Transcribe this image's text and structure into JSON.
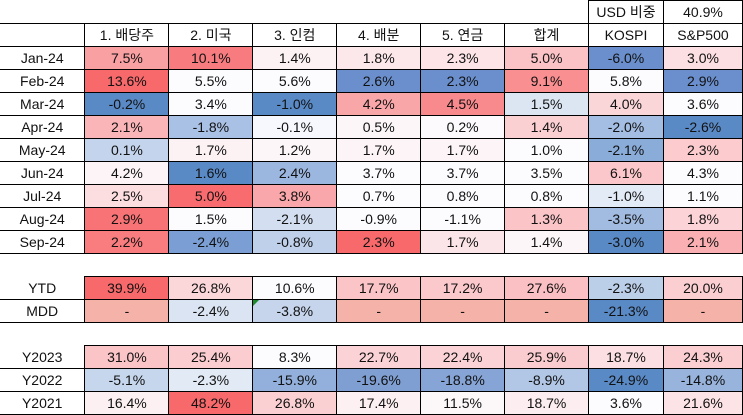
{
  "usd_ratio": {
    "label": "USD 비중",
    "value": "40.9%"
  },
  "headers": [
    "1. 배당주",
    "2. 미국",
    "3. 인컴",
    "4. 배분",
    "5. 연금",
    "합계",
    "KOSPI",
    "S&P500"
  ],
  "monthly": [
    {
      "label": "Jan-24",
      "values": [
        "7.5%",
        "10.1%",
        "1.4%",
        "1.8%",
        "2.3%",
        "5.0%",
        "-6.0%",
        "3.0%"
      ],
      "colors": [
        "#f8a0a2",
        "#f87c7f",
        "#fcf2f4",
        "#fce7ea",
        "#fce4e7",
        "#fbc3c6",
        "#6a8fcc",
        "#fcdfe2"
      ]
    },
    {
      "label": "Feb-24",
      "values": [
        "13.6%",
        "5.5%",
        "5.6%",
        "2.6%",
        "2.3%",
        "9.1%",
        "5.8%",
        "2.9%"
      ],
      "colors": [
        "#f8696b",
        "#fcfcff",
        "#fcfcff",
        "#6b8fcd",
        "#6b8fcd",
        "#f98f91",
        "#fcfcff",
        "#6b8fcd"
      ]
    },
    {
      "label": "Mar-24",
      "values": [
        "-0.2%",
        "3.4%",
        "-1.0%",
        "4.2%",
        "4.5%",
        "1.5%",
        "4.0%",
        "3.6%"
      ],
      "colors": [
        "#5a8ac6",
        "#fcfcff",
        "#5a8ac6",
        "#f9a6a9",
        "#f8898c",
        "#dce6f3",
        "#fbd6d9",
        "#fcfcff"
      ]
    },
    {
      "label": "Apr-24",
      "values": [
        "2.1%",
        "-1.8%",
        "-0.1%",
        "0.5%",
        "0.2%",
        "1.4%",
        "-2.0%",
        "-2.6%"
      ],
      "colors": [
        "#fab5b8",
        "#a9c1e4",
        "#f6f8fd",
        "#fcf6f8",
        "#fcfafc",
        "#fbd0d3",
        "#a4bde2",
        "#5a8ac6"
      ]
    },
    {
      "label": "May-24",
      "values": [
        "0.1%",
        "1.7%",
        "1.2%",
        "1.7%",
        "1.7%",
        "1.0%",
        "-2.1%",
        "2.3%"
      ],
      "colors": [
        "#c3d4ec",
        "#fcf2f4",
        "#fcf6f8",
        "#fcf4f6",
        "#fcf4f6",
        "#fcfcff",
        "#8aacd9",
        "#fbcbce"
      ]
    },
    {
      "label": "Jun-24",
      "values": [
        "4.2%",
        "1.6%",
        "2.4%",
        "3.7%",
        "3.7%",
        "3.5%",
        "6.1%",
        "4.3%"
      ],
      "colors": [
        "#fcf4f6",
        "#5a8ac6",
        "#9cb7df",
        "#fcfcff",
        "#fcfcff",
        "#fcfcff",
        "#fbc7ca",
        "#fcfcff"
      ]
    },
    {
      "label": "Jul-24",
      "values": [
        "2.5%",
        "5.0%",
        "3.8%",
        "0.7%",
        "0.8%",
        "0.8%",
        "-1.0%",
        "1.1%"
      ],
      "colors": [
        "#fcdde0",
        "#f86c6f",
        "#f9a7aa",
        "#fcfcff",
        "#fcfcff",
        "#fcfcff",
        "#e3ebf6",
        "#fcfcff"
      ]
    },
    {
      "label": "Aug-24",
      "values": [
        "2.9%",
        "1.5%",
        "-2.1%",
        "-0.9%",
        "-1.1%",
        "1.3%",
        "-3.5%",
        "1.8%"
      ],
      "colors": [
        "#f87375",
        "#fcfcff",
        "#d3dff0",
        "#fcfcff",
        "#fcfcff",
        "#fbc5c8",
        "#a2bbe1",
        "#fcd3d6"
      ]
    },
    {
      "label": "Sep-24",
      "values": [
        "2.2%",
        "-2.4%",
        "-0.8%",
        "2.3%",
        "1.7%",
        "1.4%",
        "-3.0%",
        "2.1%"
      ],
      "colors": [
        "#f97c7e",
        "#7b9fd4",
        "#bfd0ea",
        "#f8696b",
        "#fce5e8",
        "#fcf6f8",
        "#5a8ac6",
        "#fab0b3"
      ]
    }
  ],
  "summary": [
    {
      "label": "YTD",
      "values": [
        "39.9%",
        "26.8%",
        "10.6%",
        "17.7%",
        "17.2%",
        "27.6%",
        "-2.3%",
        "20.0%"
      ],
      "colors": [
        "#f8696b",
        "#fcd7da",
        "#fcfcff",
        "#fbc5c8",
        "#fbc8cb",
        "#fbc0c3",
        "#bccfe9",
        "#fbcfd2"
      ]
    },
    {
      "label": "MDD",
      "values": [
        "-",
        "-2.4%",
        "-3.8%",
        "-",
        "-",
        "-",
        "-21.3%",
        "-"
      ],
      "colors": [
        "#f4b2a8",
        "#dbe4f2",
        "#c6d5ec",
        "#f4b2a8",
        "#f4b2a8",
        "#f4b2a8",
        "#5a8ac6",
        "#f4b2a8"
      ]
    }
  ],
  "yearly": [
    {
      "label": "Y2023",
      "values": [
        "31.0%",
        "25.4%",
        "8.3%",
        "22.7%",
        "22.4%",
        "25.9%",
        "18.7%",
        "24.3%"
      ],
      "colors": [
        "#fbc4c7",
        "#fbcdd0",
        "#fcfcff",
        "#fbd2d5",
        "#fbd3d6",
        "#fbcccf",
        "#fbdfe2",
        "#fbcfd2"
      ]
    },
    {
      "label": "Y2022",
      "values": [
        "-5.1%",
        "-2.3%",
        "-15.9%",
        "-19.6%",
        "-18.8%",
        "-8.9%",
        "-24.9%",
        "-14.8%"
      ],
      "colors": [
        "#c6d6ec",
        "#e2eaf6",
        "#92b0db",
        "#7f9fd3",
        "#86a4d5",
        "#b2c7e6",
        "#5a8ac6",
        "#98b4dd"
      ]
    },
    {
      "label": "Y2021",
      "values": [
        "16.4%",
        "48.2%",
        "26.8%",
        "17.4%",
        "11.5%",
        "18.7%",
        "3.6%",
        "21.6%"
      ],
      "colors": [
        "#fcf0f2",
        "#f8696b",
        "#fbd0d3",
        "#fcf0f2",
        "#fcf8fa",
        "#fcedf0",
        "#fcfcff",
        "#fce3e6"
      ]
    }
  ]
}
